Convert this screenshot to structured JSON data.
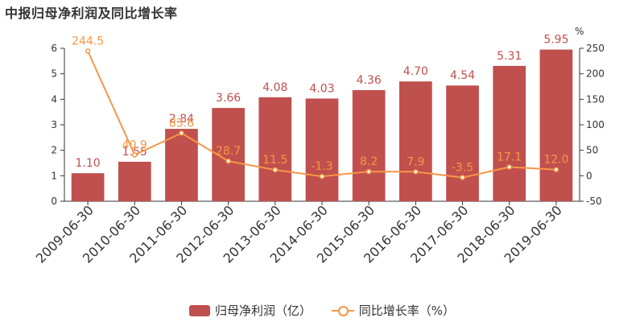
{
  "chart_data": {
    "type": "bar+line",
    "title": "中报归母净利润及同比增长率",
    "categories": [
      "2009-06-30",
      "2010-06-30",
      "2011-06-30",
      "2012-06-30",
      "2013-06-30",
      "2014-06-30",
      "2015-06-30",
      "2016-06-30",
      "2017-06-30",
      "2018-06-30",
      "2019-06-30"
    ],
    "series": [
      {
        "name": "归母净利润（亿）",
        "type": "bar",
        "axis": "left",
        "color": "#c0504d",
        "values": [
          1.1,
          1.55,
          2.84,
          3.66,
          4.08,
          4.03,
          4.36,
          4.7,
          4.54,
          5.31,
          5.95
        ],
        "labels": [
          "1.10",
          "1.55",
          "2.84",
          "3.66",
          "4.08",
          "4.03",
          "4.36",
          "4.70",
          "4.54",
          "5.31",
          "5.95"
        ]
      },
      {
        "name": "同比增长率（%）",
        "type": "line",
        "axis": "right",
        "color": "#f79646",
        "values": [
          244.5,
          40.9,
          83.6,
          28.7,
          11.5,
          -1.3,
          8.2,
          7.9,
          -3.5,
          17.1,
          12.0
        ],
        "labels": [
          "244.5",
          "40.9",
          "83.6",
          "28.7",
          "11.5",
          "-1.3",
          "8.2",
          "7.9",
          "-3.5",
          "17.1",
          "12.0"
        ]
      }
    ],
    "y_left": {
      "min": 0,
      "max": 6,
      "ticks": [
        "0",
        "1",
        "2",
        "3",
        "4",
        "5",
        "6"
      ]
    },
    "y_right": {
      "min": -50,
      "max": 250,
      "unit_label": "%",
      "ticks": [
        "-50",
        "0",
        "50",
        "100",
        "150",
        "200",
        "250"
      ]
    },
    "grid": false,
    "legend_position": "bottom"
  }
}
